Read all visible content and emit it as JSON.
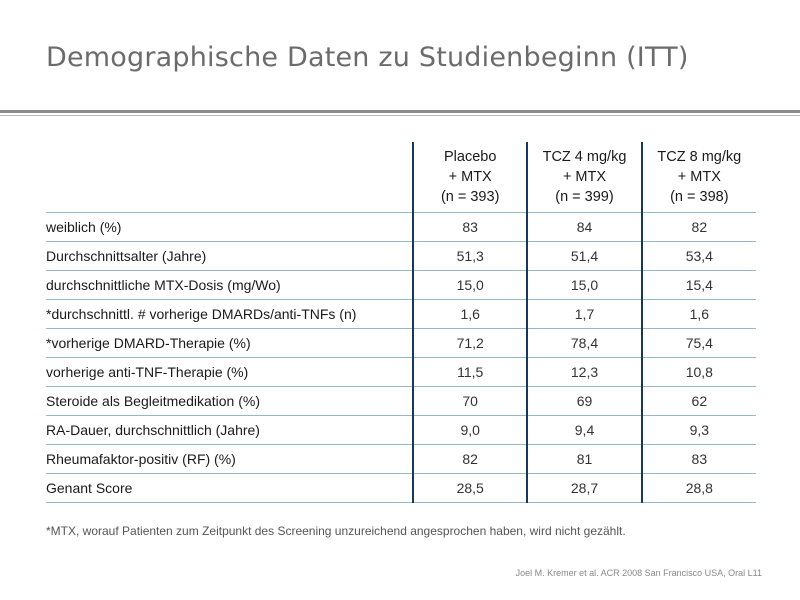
{
  "title": "Demographische Daten zu Studienbeginn (ITT)",
  "table": {
    "headers": [
      {
        "line1": "Placebo",
        "line2": "+ MTX",
        "line3": "(n = 393)"
      },
      {
        "line1": "TCZ 4 mg/kg",
        "line2": "+ MTX",
        "line3": "(n = 399)"
      },
      {
        "line1": "TCZ 8 mg/kg",
        "line2": "+ MTX",
        "line3": "(n = 398)"
      }
    ],
    "rows": [
      {
        "label": "weiblich (%)",
        "values": [
          "83",
          "84",
          "82"
        ]
      },
      {
        "label": "Durchschnittsalter (Jahre)",
        "values": [
          "51,3",
          "51,4",
          "53,4"
        ]
      },
      {
        "label": "durchschnittliche MTX-Dosis (mg/Wo)",
        "values": [
          "15,0",
          "15,0",
          "15,4"
        ]
      },
      {
        "label": "*durchschnittl. # vorherige DMARDs/anti-TNFs (n)",
        "values": [
          "1,6",
          "1,7",
          "1,6"
        ]
      },
      {
        "label": "*vorherige DMARD-Therapie (%)",
        "values": [
          "71,2",
          "78,4",
          "75,4"
        ]
      },
      {
        "label": "vorherige anti-TNF-Therapie (%)",
        "values": [
          "11,5",
          "12,3",
          "10,8"
        ]
      },
      {
        "label": "Steroide als Begleitmedikation (%)",
        "values": [
          "70",
          "69",
          "62"
        ]
      },
      {
        "label": "RA-Dauer, durchschnittlich (Jahre)",
        "values": [
          "9,0",
          "9,4",
          "9,3"
        ]
      },
      {
        "label": "Rheumafaktor-positiv (RF) (%)",
        "values": [
          "82",
          "81",
          "83"
        ]
      },
      {
        "label": "Genant Score",
        "values": [
          "28,5",
          "28,7",
          "28,8"
        ]
      }
    ]
  },
  "footnote": "*MTX, worauf Patienten zum Zeitpunkt des Screening unzureichend angesprochen haben, wird nicht gezählt.",
  "source": "Joel M. Kremer et al. ACR 2008 San Francisco USA, Oral L11"
}
